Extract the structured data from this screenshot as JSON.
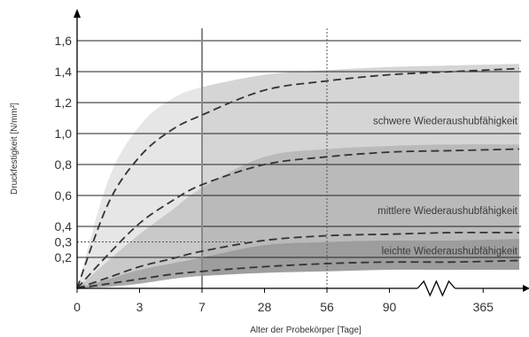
{
  "chart_data": {
    "type": "area",
    "title": "",
    "xlabel": "Alter der Probekörper [Tage]",
    "ylabel": "Druckfestigkeit [N/mm²]",
    "ylim": [
      0,
      1.6
    ],
    "x_ticks": [
      "0",
      "3",
      "7",
      "28",
      "56",
      "90",
      "365"
    ],
    "x_tick_positions": [
      0,
      1,
      2,
      3,
      4,
      5,
      6.5
    ],
    "x_axis_break": "between 90 and 365",
    "y_ticks": [
      "0,2",
      "0,3",
      "0,4",
      "0,6",
      "0,8",
      "1,0",
      "1,2",
      "1,4",
      "1,6"
    ],
    "y_tick_values": [
      0.2,
      0.3,
      0.4,
      0.6,
      0.8,
      1.0,
      1.2,
      1.4,
      1.6
    ],
    "grid": true,
    "reference_lines": [
      {
        "axis": "x",
        "value": 2,
        "style": "solid"
      },
      {
        "axis": "x",
        "value": 4,
        "style": "dotted"
      },
      {
        "axis": "y",
        "value": 0.3,
        "style": "dotted"
      }
    ],
    "bands": [
      {
        "label": "schwere Wiederaushubfähigkeit",
        "x": [
          0,
          0.5,
          1,
          1.5,
          2,
          3,
          4,
          5,
          6,
          7.1
        ],
        "lower": [
          0,
          0.18,
          0.35,
          0.5,
          0.65,
          0.85,
          0.9,
          0.92,
          0.93,
          0.93
        ],
        "upper": [
          0,
          0.7,
          1.05,
          1.22,
          1.3,
          1.38,
          1.41,
          1.43,
          1.44,
          1.45
        ],
        "shade": "light"
      },
      {
        "label": "mittlere Wiederaushubfähigkeit",
        "x": [
          0,
          0.5,
          1,
          1.5,
          2,
          3,
          4,
          5,
          6,
          7.1
        ],
        "lower": [
          0,
          0.06,
          0.12,
          0.16,
          0.2,
          0.28,
          0.3,
          0.31,
          0.31,
          0.32
        ],
        "upper": [
          0,
          0.18,
          0.35,
          0.5,
          0.65,
          0.85,
          0.9,
          0.92,
          0.93,
          0.93
        ],
        "shade": "medium"
      },
      {
        "label": "leichte Wiederaushubfähigkeit",
        "x": [
          0,
          0.5,
          1,
          1.5,
          2,
          3,
          4,
          5,
          6,
          7.1
        ],
        "lower": [
          0,
          0.01,
          0.03,
          0.06,
          0.08,
          0.1,
          0.11,
          0.12,
          0.12,
          0.12
        ],
        "upper": [
          0,
          0.06,
          0.12,
          0.16,
          0.2,
          0.28,
          0.3,
          0.31,
          0.31,
          0.32
        ],
        "shade": "dark"
      }
    ],
    "series": [
      {
        "style": "dashed",
        "x": [
          0,
          0.5,
          1,
          1.5,
          2,
          3,
          4,
          5,
          6,
          7.1
        ],
        "y": [
          0,
          0.55,
          0.85,
          1.02,
          1.12,
          1.28,
          1.34,
          1.38,
          1.4,
          1.42
        ]
      },
      {
        "style": "dashed",
        "x": [
          0,
          0.5,
          1,
          1.5,
          2,
          3,
          4,
          5,
          6,
          7.1
        ],
        "y": [
          0,
          0.22,
          0.42,
          0.56,
          0.67,
          0.8,
          0.85,
          0.88,
          0.89,
          0.9
        ]
      },
      {
        "style": "dashed",
        "x": [
          0,
          0.5,
          1,
          1.5,
          2,
          3,
          4,
          5,
          6,
          7.1
        ],
        "y": [
          0,
          0.07,
          0.14,
          0.19,
          0.24,
          0.31,
          0.34,
          0.35,
          0.36,
          0.36
        ]
      },
      {
        "style": "dashed",
        "x": [
          0,
          0.5,
          1,
          1.5,
          2,
          3,
          4,
          5,
          6,
          7.1
        ],
        "y": [
          0,
          0.03,
          0.06,
          0.09,
          0.11,
          0.14,
          0.16,
          0.17,
          0.17,
          0.18
        ]
      }
    ]
  },
  "colors": {
    "band_light": "#e6e6e6",
    "band_medium": "#c9c9c9",
    "band_dark": "#a9a9a9",
    "overlay": "#9a9a9a",
    "dashed_line": "#333333",
    "axis": "#000000",
    "grid": "#222222"
  }
}
